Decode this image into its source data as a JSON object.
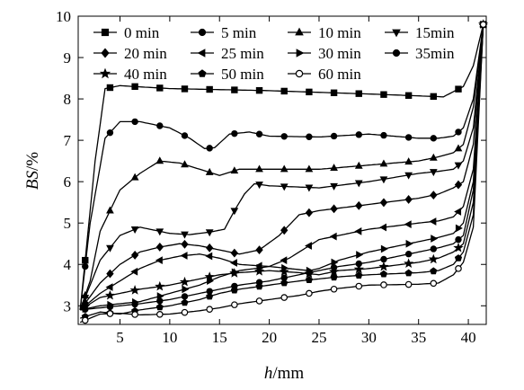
{
  "chart_data": {
    "type": "line",
    "xlabel_italic": "h",
    "xlabel_unit": "/mm",
    "ylabel_italic": "BS",
    "ylabel_unit": "/%",
    "xlim": [
      0.8,
      41.8
    ],
    "ylim": [
      2.55,
      10
    ],
    "xticks": [
      5,
      10,
      15,
      20,
      25,
      30,
      35,
      40
    ],
    "yticks": [
      3,
      4,
      5,
      6,
      7,
      8,
      9,
      10
    ],
    "grid": false,
    "legend_placement": "top-left",
    "series": [
      {
        "name": "0 min",
        "marker": "square-filled",
        "x": [
          1,
          2.5,
          3.5,
          5,
          10,
          20,
          30,
          37.5,
          39.5,
          40.5,
          41.5
        ],
        "y": [
          2.9,
          6.5,
          8.25,
          8.32,
          8.25,
          8.2,
          8.12,
          8.05,
          8.3,
          8.8,
          9.8
        ]
      },
      {
        "name": "5 min",
        "marker": "circle-filled",
        "x": [
          1,
          2,
          3.5,
          5,
          7,
          10,
          12,
          13.5,
          14.5,
          16,
          18,
          20,
          25,
          30,
          35,
          37,
          38.5,
          39.5,
          40.5,
          41.5
        ],
        "y": [
          2.9,
          5,
          7.05,
          7.45,
          7.45,
          7.3,
          7.05,
          6.8,
          6.82,
          7.15,
          7.2,
          7.1,
          7.08,
          7.15,
          7.05,
          7.05,
          7.1,
          7.3,
          8,
          9.8
        ]
      },
      {
        "name": "10 min",
        "marker": "triangle-up-filled",
        "x": [
          1,
          2,
          3,
          5,
          7,
          9,
          11,
          13,
          15,
          17,
          20,
          25,
          30,
          35,
          37,
          38.5,
          39.5,
          40.5,
          41.5
        ],
        "y": [
          2.9,
          3.6,
          4.8,
          5.8,
          6.2,
          6.5,
          6.45,
          6.3,
          6.15,
          6.3,
          6.3,
          6.3,
          6.4,
          6.5,
          6.6,
          6.7,
          6.9,
          7.8,
          9.8
        ]
      },
      {
        "name": "15min",
        "marker": "triangle-down-filled",
        "x": [
          1,
          2,
          3,
          5,
          7,
          8,
          10,
          12,
          14,
          15.5,
          16.5,
          17.5,
          18.5,
          20,
          25,
          30,
          35,
          37,
          38.5,
          39.5,
          40.5,
          41.5
        ],
        "y": [
          2.9,
          3.5,
          4.1,
          4.7,
          4.9,
          4.85,
          4.75,
          4.72,
          4.78,
          4.85,
          5.3,
          5.7,
          5.95,
          5.9,
          5.85,
          6.0,
          6.2,
          6.25,
          6.3,
          6.5,
          7.3,
          9.8
        ]
      },
      {
        "name": "20 min",
        "marker": "diamond-filled",
        "x": [
          1,
          3,
          5,
          7,
          9,
          11,
          13,
          15,
          17,
          19,
          21,
          23,
          25,
          30,
          35,
          37,
          38.5,
          39.5,
          40.5,
          41.5
        ],
        "y": [
          2.9,
          3.55,
          4.0,
          4.3,
          4.42,
          4.5,
          4.45,
          4.35,
          4.25,
          4.35,
          4.7,
          5.2,
          5.3,
          5.45,
          5.6,
          5.7,
          5.85,
          6.0,
          6.9,
          9.8
        ]
      },
      {
        "name": "25 min",
        "marker": "triangle-left-filled",
        "x": [
          1,
          3,
          5,
          7,
          9,
          11,
          13,
          15,
          17,
          20,
          22,
          25,
          30,
          35,
          37,
          38.5,
          39.5,
          40.5,
          41.5
        ],
        "y": [
          2.9,
          3.3,
          3.6,
          3.9,
          4.1,
          4.2,
          4.25,
          4.15,
          4.0,
          3.95,
          4.15,
          4.6,
          4.85,
          5.0,
          5.05,
          5.15,
          5.4,
          6.3,
          9.8
        ]
      },
      {
        "name": "30 min",
        "marker": "triangle-right-filled",
        "x": [
          1,
          3,
          5,
          7,
          10,
          13,
          15,
          17,
          20,
          22,
          24,
          25,
          27,
          30,
          35,
          37,
          38.5,
          39.5,
          40.5,
          41.5
        ],
        "y": [
          2.9,
          3.0,
          3.05,
          3.1,
          3.3,
          3.5,
          3.7,
          3.85,
          3.95,
          3.9,
          3.85,
          3.9,
          4.1,
          4.3,
          4.55,
          4.65,
          4.75,
          5.0,
          6.0,
          9.8
        ]
      },
      {
        "name": "35min",
        "marker": "circle-filled",
        "x": [
          1,
          3,
          5,
          7,
          10,
          13,
          15,
          17,
          20,
          23,
          25,
          27,
          30,
          35,
          37,
          38.5,
          39.5,
          40.5,
          41.5
        ],
        "y": [
          2.9,
          2.95,
          3.0,
          3.05,
          3.15,
          3.3,
          3.4,
          3.5,
          3.6,
          3.75,
          3.85,
          3.95,
          4.05,
          4.3,
          4.4,
          4.5,
          4.7,
          5.8,
          9.8
        ]
      },
      {
        "name": "40 min",
        "marker": "star-filled",
        "x": [
          1,
          3,
          5,
          7,
          10,
          13,
          15,
          17,
          20,
          23,
          25,
          27,
          30,
          35,
          37,
          38.5,
          39.5,
          40.5,
          41.5
        ],
        "y": [
          2.9,
          3.2,
          3.3,
          3.4,
          3.5,
          3.65,
          3.75,
          3.8,
          3.85,
          3.8,
          3.75,
          3.85,
          3.9,
          4.05,
          4.15,
          4.3,
          4.5,
          5.5,
          9.8
        ]
      },
      {
        "name": "50 min",
        "marker": "pentagon-filled",
        "x": [
          1,
          3,
          5,
          7,
          10,
          13,
          15,
          17,
          20,
          23,
          25,
          27,
          30,
          35,
          37,
          38.5,
          39.5,
          40.5,
          41.5
        ],
        "y": [
          2.7,
          2.85,
          2.8,
          2.9,
          3.0,
          3.15,
          3.3,
          3.4,
          3.5,
          3.6,
          3.65,
          3.7,
          3.75,
          3.8,
          3.85,
          4.0,
          4.3,
          5.2,
          9.8
        ]
      },
      {
        "name": "60 min",
        "marker": "circle-open",
        "x": [
          1,
          3,
          5,
          7,
          10,
          13,
          15,
          17,
          20,
          23,
          25,
          27,
          30,
          35,
          37,
          38.5,
          39.5,
          40.5,
          41.5
        ],
        "y": [
          2.6,
          2.8,
          2.82,
          2.78,
          2.8,
          2.88,
          2.95,
          3.05,
          3.15,
          3.25,
          3.35,
          3.42,
          3.5,
          3.52,
          3.55,
          3.75,
          4.05,
          4.9,
          9.8
        ]
      }
    ]
  }
}
